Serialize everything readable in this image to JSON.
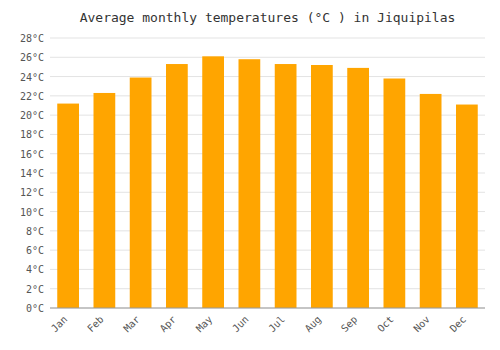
{
  "chart_data": {
    "type": "bar",
    "title": "Average monthly temperatures (°C ) in Jiquipilas",
    "categories": [
      "Jan",
      "Feb",
      "Mar",
      "Apr",
      "May",
      "Jun",
      "Jul",
      "Aug",
      "Sep",
      "Oct",
      "Nov",
      "Dec"
    ],
    "values": [
      21.2,
      22.3,
      23.9,
      25.3,
      26.1,
      25.8,
      25.3,
      25.2,
      24.9,
      23.8,
      22.2,
      21.1
    ],
    "color": "#FFA500",
    "ylim": [
      0,
      28
    ],
    "yticks": [
      {
        "value": 0,
        "label": "0°C"
      },
      {
        "value": 2,
        "label": "2°C"
      },
      {
        "value": 4,
        "label": "4°C"
      },
      {
        "value": 6,
        "label": "6°C"
      },
      {
        "value": 8,
        "label": "8°C"
      },
      {
        "value": 10,
        "label": "10°C"
      },
      {
        "value": 12,
        "label": "12°C"
      },
      {
        "value": 14,
        "label": "14°C"
      },
      {
        "value": 16,
        "label": "16°C"
      },
      {
        "value": 18,
        "label": "18°C"
      },
      {
        "value": 20,
        "label": "20°C"
      },
      {
        "value": 22,
        "label": "22°C"
      },
      {
        "value": 24,
        "label": "24°C"
      },
      {
        "value": 26,
        "label": "26°C"
      },
      {
        "value": 28,
        "label": "28°C"
      }
    ],
    "grid": true
  }
}
